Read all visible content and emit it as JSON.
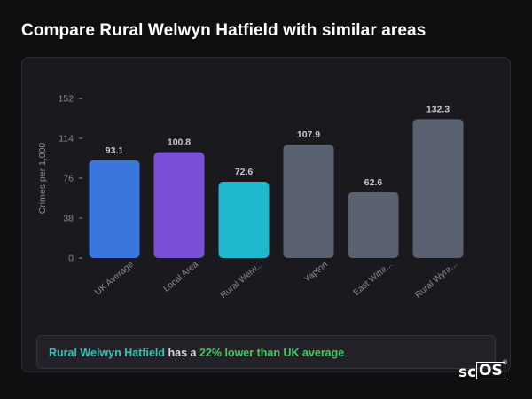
{
  "page": {
    "title": "Compare Rural Welwyn Hatfield with similar areas"
  },
  "summary": {
    "area": "Rural Welwyn Hatfield",
    "connector": " has a ",
    "stat": "22% lower than UK average"
  },
  "brand": {
    "sc": "sc",
    "os": "OS",
    "reg": "®"
  },
  "chart_data": {
    "type": "bar",
    "title": "",
    "ylabel": "Crimes per 1,000",
    "xlabel": "",
    "ylim": [
      0,
      152
    ],
    "yticks": [
      0,
      38,
      76,
      114,
      152
    ],
    "grid": false,
    "categories": [
      "UK Average",
      "Local Area",
      "Rural Welw...",
      "Yapton",
      "East Witte...",
      "Rural Wyre..."
    ],
    "values": [
      93.1,
      100.8,
      72.6,
      107.9,
      62.6,
      132.3
    ],
    "value_labels": [
      "93.1",
      "100.8",
      "72.6",
      "107.9",
      "62.6",
      "132.3"
    ],
    "colors": [
      "#3a76db",
      "#7a4fd6",
      "#1fb8cf",
      "#5a6272",
      "#5a6272",
      "#5a6272"
    ],
    "axis_color": "#8a8a92",
    "label_color": "#c8c8cc"
  }
}
